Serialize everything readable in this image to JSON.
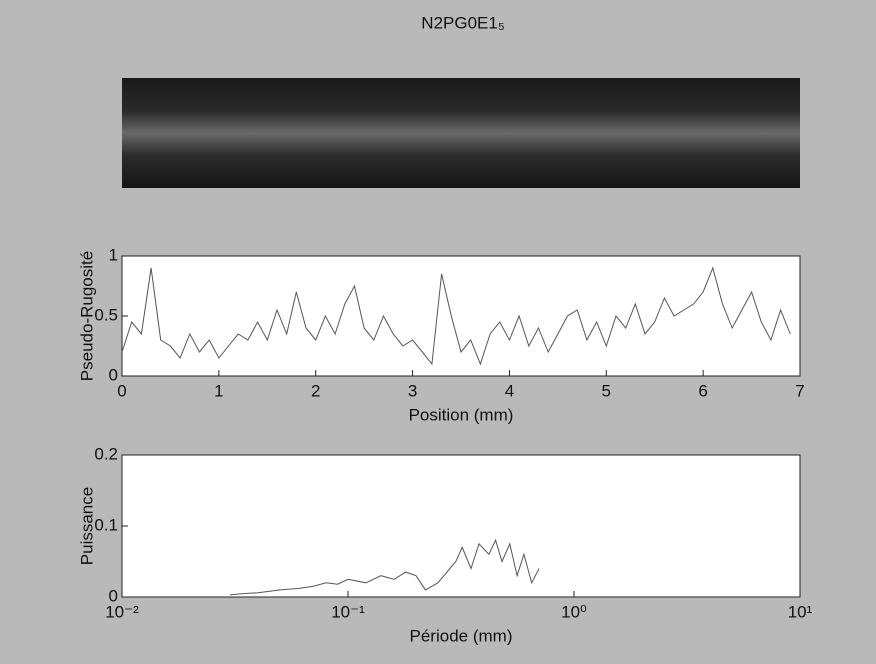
{
  "figure": {
    "title": "N2PG0E1₅"
  },
  "chart_data": [
    {
      "type": "line",
      "xlabel": "Position (mm)",
      "ylabel": "Pseudo-Rugosité",
      "color": "#555555",
      "x": [
        0,
        0.1,
        0.2,
        0.3,
        0.4,
        0.5,
        0.6,
        0.7,
        0.8,
        0.9,
        1,
        1.1,
        1.2,
        1.3,
        1.4,
        1.5,
        1.6,
        1.7,
        1.8,
        1.9,
        2,
        2.1,
        2.2,
        2.3,
        2.4,
        2.5,
        2.6,
        2.7,
        2.8,
        2.9,
        3,
        3.1,
        3.2,
        3.3,
        3.4,
        3.5,
        3.6,
        3.7,
        3.8,
        3.9,
        4,
        4.1,
        4.2,
        4.3,
        4.4,
        4.5,
        4.6,
        4.7,
        4.8,
        4.9,
        5,
        5.1,
        5.2,
        5.3,
        5.4,
        5.5,
        5.6,
        5.7,
        5.8,
        5.9,
        6,
        6.1,
        6.2,
        6.3,
        6.4,
        6.5,
        6.6,
        6.7,
        6.8,
        6.9
      ],
      "values": [
        0.2,
        0.45,
        0.35,
        0.9,
        0.3,
        0.25,
        0.15,
        0.35,
        0.2,
        0.3,
        0.15,
        0.25,
        0.35,
        0.3,
        0.45,
        0.3,
        0.55,
        0.35,
        0.7,
        0.4,
        0.3,
        0.5,
        0.35,
        0.6,
        0.75,
        0.4,
        0.3,
        0.5,
        0.35,
        0.25,
        0.3,
        0.2,
        0.1,
        0.85,
        0.5,
        0.2,
        0.3,
        0.1,
        0.35,
        0.45,
        0.3,
        0.5,
        0.25,
        0.4,
        0.2,
        0.35,
        0.5,
        0.55,
        0.3,
        0.45,
        0.25,
        0.5,
        0.4,
        0.6,
        0.35,
        0.45,
        0.65,
        0.5,
        0.55,
        0.6,
        0.7,
        0.9,
        0.6,
        0.4,
        0.55,
        0.7,
        0.45,
        0.3,
        0.55,
        0.35
      ],
      "xlim": [
        0,
        7
      ],
      "xticks": [
        0,
        1,
        2,
        3,
        4,
        5,
        6,
        7
      ],
      "ylim": [
        0,
        1
      ],
      "yticks": [
        0,
        0.5,
        1
      ],
      "log_x": false
    },
    {
      "type": "line",
      "xlabel": "Période (mm)",
      "ylabel": "Puissance",
      "color": "#555555",
      "x": [
        0.03,
        0.035,
        0.04,
        0.045,
        0.05,
        0.06,
        0.07,
        0.08,
        0.09,
        0.1,
        0.12,
        0.14,
        0.16,
        0.18,
        0.2,
        0.22,
        0.25,
        0.3,
        0.32,
        0.35,
        0.38,
        0.42,
        0.45,
        0.48,
        0.52,
        0.56,
        0.6,
        0.65,
        0.7
      ],
      "values": [
        0.003,
        0.005,
        0.006,
        0.008,
        0.01,
        0.012,
        0.015,
        0.02,
        0.018,
        0.025,
        0.02,
        0.03,
        0.025,
        0.035,
        0.03,
        0.01,
        0.02,
        0.05,
        0.07,
        0.04,
        0.075,
        0.06,
        0.08,
        0.05,
        0.075,
        0.03,
        0.06,
        0.02,
        0.04
      ],
      "xlim": [
        0.01,
        10
      ],
      "xticks": [
        {
          "value": 0.01,
          "label": "10⁻²"
        },
        {
          "value": 0.1,
          "label": "10⁻¹"
        },
        {
          "value": 1,
          "label": "10⁰"
        },
        {
          "value": 10,
          "label": "10¹"
        }
      ],
      "ylim": [
        0,
        0.2
      ],
      "yticks": [
        0,
        0.1,
        0.2
      ],
      "log_x": true
    }
  ]
}
